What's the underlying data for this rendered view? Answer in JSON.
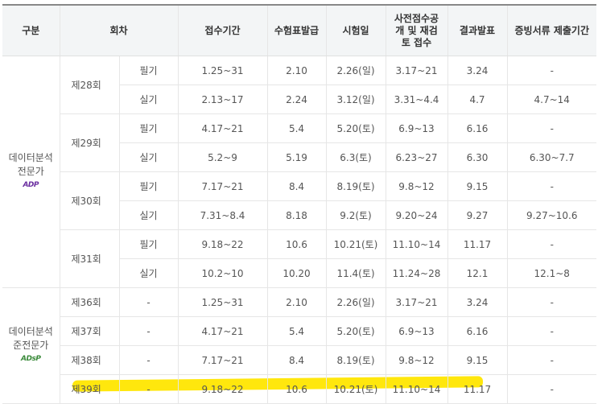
{
  "headers": [
    "구분",
    "회차",
    "접수기간",
    "수험표발급",
    "시험일",
    "사전점수공개 및 재검토 접수",
    "결과발표",
    "증빙서류 제출기간"
  ],
  "categories": [
    {
      "name": "데이터분석 전문가",
      "logo": "ADP",
      "logo_color": "#6b2fa0"
    },
    {
      "name": "데이터분석 준전문가",
      "logo": "ADsP",
      "logo_color": "#3a8a3a"
    }
  ],
  "adp_rounds": [
    {
      "round": "제28회",
      "rows": [
        {
          "type": "필기",
          "cells": [
            "1.25~31",
            "2.10",
            "2.26(일)",
            "3.17~21",
            "3.24",
            "-"
          ]
        },
        {
          "type": "실기",
          "cells": [
            "2.13~17",
            "2.24",
            "3.12(일)",
            "3.31~4.4",
            "4.7",
            "4.7~14"
          ]
        }
      ]
    },
    {
      "round": "제29회",
      "rows": [
        {
          "type": "필기",
          "cells": [
            "4.17~21",
            "5.4",
            "5.20(토)",
            "6.9~13",
            "6.16",
            "-"
          ]
        },
        {
          "type": "실기",
          "cells": [
            "5.2~9",
            "5.19",
            "6.3(토)",
            "6.23~27",
            "6.30",
            "6.30~7.7"
          ]
        }
      ]
    },
    {
      "round": "제30회",
      "rows": [
        {
          "type": "필기",
          "cells": [
            "7.17~21",
            "8.4",
            "8.19(토)",
            "9.8~12",
            "9.15",
            "-"
          ]
        },
        {
          "type": "실기",
          "cells": [
            "7.31~8.4",
            "8.18",
            "9.2(토)",
            "9.20~24",
            "9.27",
            "9.27~10.6"
          ]
        }
      ]
    },
    {
      "round": "제31회",
      "rows": [
        {
          "type": "필기",
          "cells": [
            "9.18~22",
            "10.6",
            "10.21(토)",
            "11.10~14",
            "11.17",
            "-"
          ]
        },
        {
          "type": "실기",
          "cells": [
            "10.2~10",
            "10.20",
            "11.4(토)",
            "11.24~28",
            "12.1",
            "12.1~8"
          ]
        }
      ]
    }
  ],
  "adsp_rounds": [
    {
      "round": "제36회",
      "type": "-",
      "cells": [
        "1.25~31",
        "2.10",
        "2.26(일)",
        "3.17~21",
        "3.24",
        "-"
      ]
    },
    {
      "round": "제37회",
      "type": "-",
      "cells": [
        "4.17~21",
        "5.4",
        "5.20(토)",
        "6.9~13",
        "6.16",
        "-"
      ]
    },
    {
      "round": "제38회",
      "type": "-",
      "cells": [
        "7.17~21",
        "8.4",
        "8.19(토)",
        "9.8~12",
        "9.15",
        "-"
      ]
    },
    {
      "round": "제39회",
      "type": "-",
      "cells": [
        "9.18~22",
        "10.6",
        "10.21(토)",
        "11.10~14",
        "11.17",
        "-"
      ]
    }
  ],
  "highlight_color": "#ffe600"
}
